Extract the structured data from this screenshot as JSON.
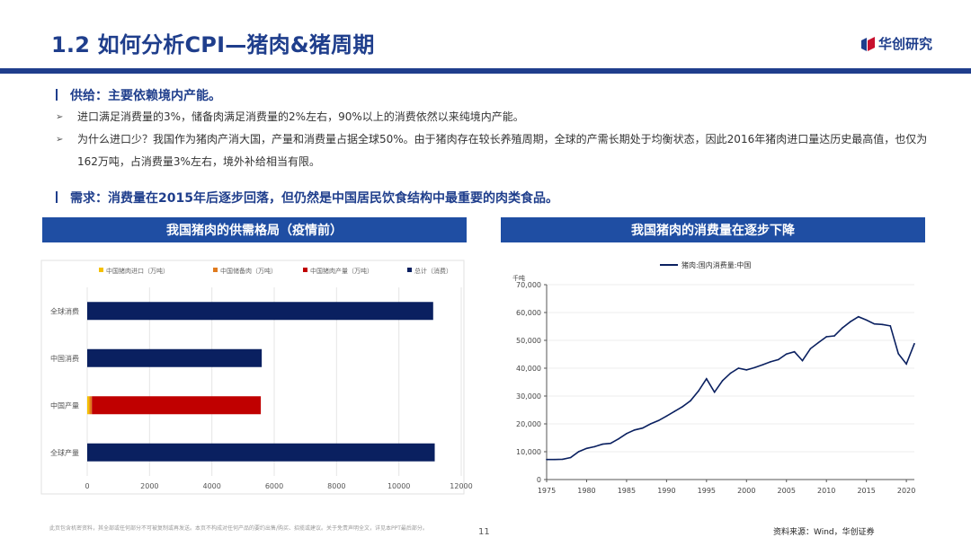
{
  "header": {
    "title": "1.2 如何分析CPI—猪肉&猪周期",
    "logo_text": "华创研究"
  },
  "supply": {
    "heading": "供给：主要依赖境内产能。",
    "bullets": [
      "进口满足消费量的3%，储备肉满足消费量的2%左右，90%以上的消费依然以来纯境内产能。",
      "为什么进口少？我国作为猪肉产消大国，产量和消费量占据全球50%。由于猪肉存在较长养殖周期，全球的产需长期处于均衡状态，因此2016年猪肉进口量达历史最高值，也仅为162万吨，占消费量3%左右，境外补给相当有限。"
    ]
  },
  "demand": {
    "heading": "需求：消费量在2015年后逐步回落，但仍然是中国居民饮食结构中最重要的肉类食品。"
  },
  "left_panel": {
    "title": "我国猪肉的供需格局（疫情前）"
  },
  "right_panel": {
    "title": "我国猪肉的消费量在逐步下降"
  },
  "footer": {
    "disclaimer": "此页包含机密资料，其全部或任何部分不可被复制或再发送。本页不构成对任何产品的要约出售/购买、招揽或建议。关于免责声明全文，详见本PPT最后部分。",
    "page": "11",
    "source": "资料来源：Wind，华创证券"
  },
  "colors": {
    "brand": "#1f3e8c",
    "navy": "#0a2060",
    "red": "#c00000",
    "orange": "#e07b1f",
    "yellow": "#f5c000"
  },
  "chart_data": [
    {
      "type": "bar",
      "orientation": "horizontal",
      "stacked": true,
      "legend": [
        "中国猪肉进口（万吨）",
        "中国储备肉（万吨）",
        "中国猪肉产量（万吨）",
        "总计（消费）"
      ],
      "categories": [
        "全球消费",
        "中国消费",
        "中国产量",
        "全球产量"
      ],
      "series": [
        {
          "name": "中国猪肉进口（万吨）",
          "color": "#f5c000",
          "values": [
            0,
            0,
            70,
            0
          ]
        },
        {
          "name": "中国储备肉（万吨）",
          "color": "#e07b1f",
          "values": [
            0,
            0,
            80,
            0
          ]
        },
        {
          "name": "中国猪肉产量（万吨）",
          "color": "#c00000",
          "values": [
            0,
            0,
            5420,
            0
          ]
        },
        {
          "name": "总计（消费）",
          "color": "#0a2060",
          "values": [
            11100,
            5600,
            0,
            11150
          ]
        }
      ],
      "xlim": [
        0,
        12000
      ],
      "xticks": [
        "0",
        "2000",
        "4000",
        "6000",
        "8000",
        "10000",
        "12000"
      ],
      "legend_position": "top"
    },
    {
      "type": "line",
      "legend": [
        "猪肉:国内消费量:中国"
      ],
      "ylabel": "千吨",
      "x": [
        1975,
        1976,
        1977,
        1978,
        1979,
        1980,
        1981,
        1982,
        1983,
        1984,
        1985,
        1986,
        1987,
        1988,
        1989,
        1990,
        1991,
        1992,
        1993,
        1994,
        1995,
        1996,
        1997,
        1998,
        1999,
        2000,
        2001,
        2002,
        2003,
        2004,
        2005,
        2006,
        2007,
        2008,
        2009,
        2010,
        2011,
        2012,
        2013,
        2014,
        2015,
        2016,
        2017,
        2018,
        2019,
        2020,
        2021
      ],
      "series": [
        {
          "name": "猪肉:国内消费量:中国",
          "color": "#0a2060",
          "values": [
            7200,
            7200,
            7300,
            7900,
            10000,
            11200,
            11800,
            12700,
            13000,
            14600,
            16500,
            17800,
            18500,
            20000,
            21200,
            22800,
            24500,
            26200,
            28300,
            31800,
            36200,
            31400,
            35500,
            38200,
            40000,
            39400,
            40200,
            41200,
            42300,
            43100,
            45100,
            45900,
            42700,
            47000,
            49200,
            51300,
            51600,
            54500,
            56700,
            58500,
            57300,
            55900,
            55700,
            55200,
            45200,
            41500,
            48800
          ]
        }
      ],
      "xlim": [
        1975,
        2021
      ],
      "ylim": [
        0,
        70000
      ],
      "xticks": [
        "1975",
        "1980",
        "1985",
        "1990",
        "1995",
        "2000",
        "2005",
        "2010",
        "2015",
        "2020"
      ],
      "yticks": [
        "0",
        "10,000",
        "20,000",
        "30,000",
        "40,000",
        "50,000",
        "60,000",
        "70,000"
      ],
      "legend_position": "top"
    }
  ]
}
